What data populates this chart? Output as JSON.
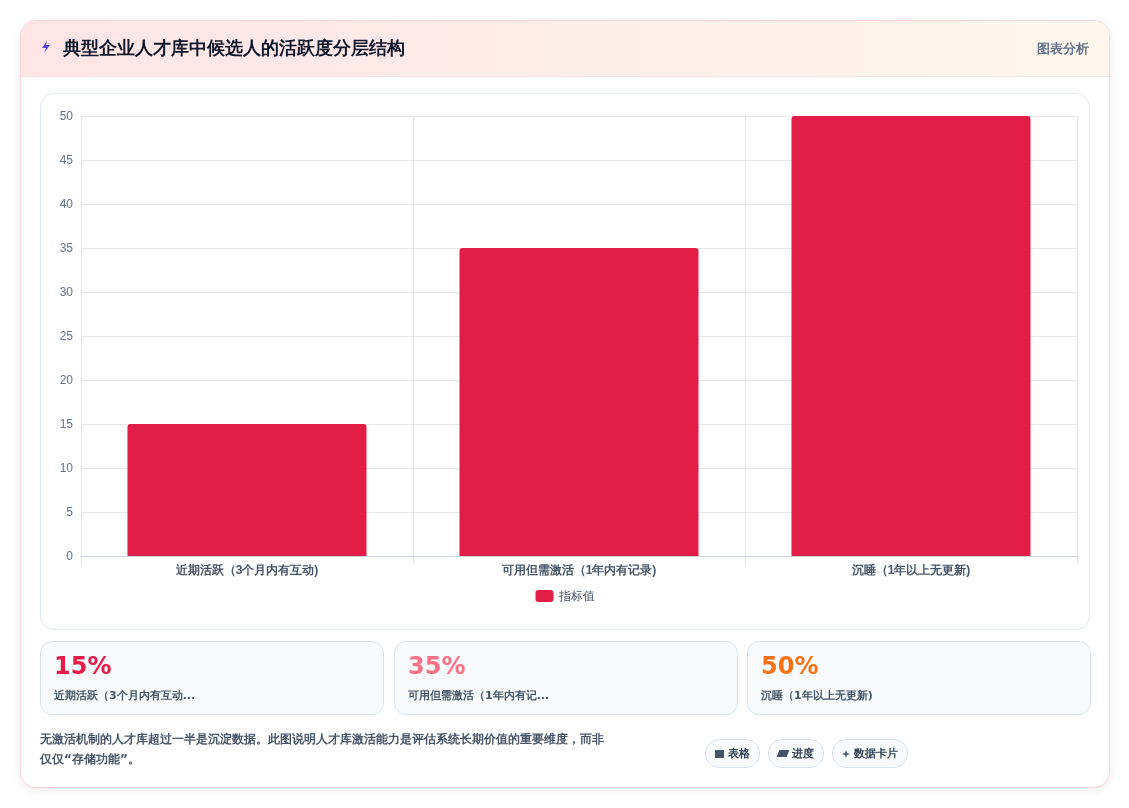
{
  "chart_data": {
    "type": "bar",
    "title": "典型企业人才库中候选人的活跃度分层结构",
    "categories": [
      "近期活跃（3个月内有互动)",
      "可用但需激活（1年内有记录)",
      "沉睡（1年以上无更新)"
    ],
    "series": [
      {
        "name": "指标值",
        "color": "#e11d48",
        "values": [
          15,
          35,
          50
        ]
      }
    ],
    "ylim": [
      0,
      50
    ],
    "yticks": [
      0,
      5,
      10,
      15,
      20,
      25,
      30,
      35,
      40,
      45,
      50
    ],
    "grid": true,
    "legend": "bottom",
    "annotations": [
      "图表分析",
      "15%",
      "近期活跃（3个月内有互动...",
      "35%",
      "可用但需激活（1年内有记...",
      "50%",
      "沉睡（1年以上无更新)",
      "无激活机制的人才库超过一半是沉淀数据。此图说明人才库激活能力是评估系统长期价值的重要维度，而非仅仅“存储功能”。",
      "表格",
      "进度",
      "数据卡片"
    ]
  }
}
